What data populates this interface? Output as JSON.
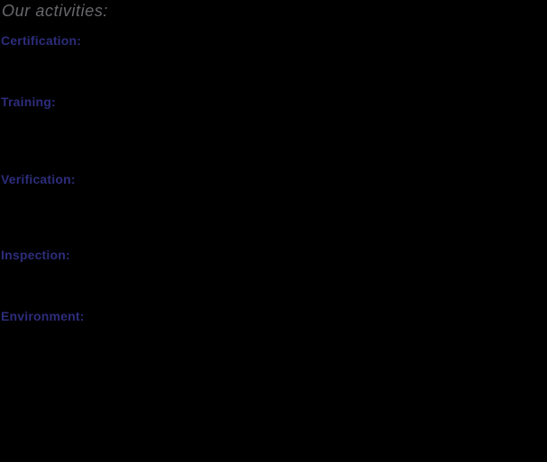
{
  "page": {
    "background_color": "#000000",
    "title": {
      "text": "Our activities:",
      "color": "#68686d"
    },
    "heading_color": "#2d2d7c",
    "sections": [
      {
        "label": "Certification:"
      },
      {
        "label": "Training:"
      },
      {
        "label": "Verification:"
      },
      {
        "label": "Inspection:"
      },
      {
        "label": "Environment:"
      }
    ]
  }
}
